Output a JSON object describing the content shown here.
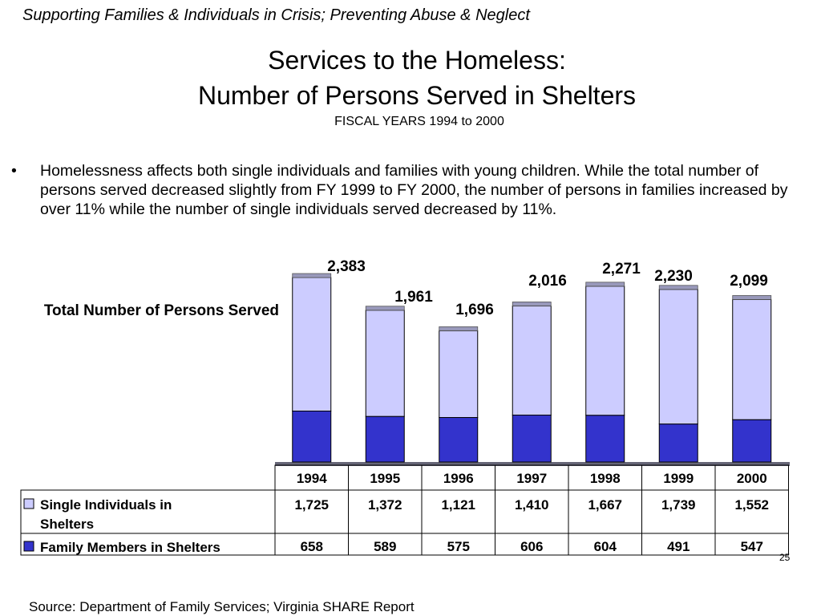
{
  "header": {
    "caption": "Supporting Families & Individuals in Crisis; Preventing Abuse & Neglect",
    "title_line1": "Services to the Homeless:",
    "title_line2": "Number of Persons Served in Shelters",
    "subtitle": "FISCAL YEARS 1994 to 2000"
  },
  "bullet": {
    "symbol": "•",
    "text": "Homelessness affects both single individuals and families with young children.  While the total number of persons served decreased slightly from FY 1999 to FY 2000, the number of persons in families increased by over 11% while the number of single individuals served decreased by 11%."
  },
  "chart_data": {
    "type": "bar",
    "stacked": true,
    "ylabel": "Total Number of Persons Served",
    "categories": [
      "1994",
      "1995",
      "1996",
      "1997",
      "1998",
      "1999",
      "2000"
    ],
    "series": [
      {
        "name": "Family Members in Shelters",
        "color": "#3333cc",
        "values": [
          658,
          589,
          575,
          606,
          604,
          491,
          547
        ],
        "labels": [
          "658",
          "589",
          "575",
          "606",
          "604",
          "491",
          "547"
        ]
      },
      {
        "name": "Single Individuals in Shelters",
        "color": "#ccccff",
        "values": [
          1725,
          1372,
          1121,
          1410,
          1667,
          1739,
          1552
        ],
        "labels": [
          "1,725",
          "1,372",
          "1,121",
          "1,410",
          "1,667",
          "1,739",
          "1,552"
        ]
      }
    ],
    "totals": [
      2383,
      1961,
      1696,
      2016,
      2271,
      2230,
      2099
    ],
    "total_labels": [
      "2,383",
      "1,961",
      "1,696",
      "2,016",
      "2,271",
      "2,230",
      "2,099"
    ],
    "ylim": [
      0,
      2400
    ],
    "legend": "data-table"
  },
  "footer": {
    "source": "Source:  Department of Family Services; Virginia SHARE Report",
    "page_number": "25"
  }
}
